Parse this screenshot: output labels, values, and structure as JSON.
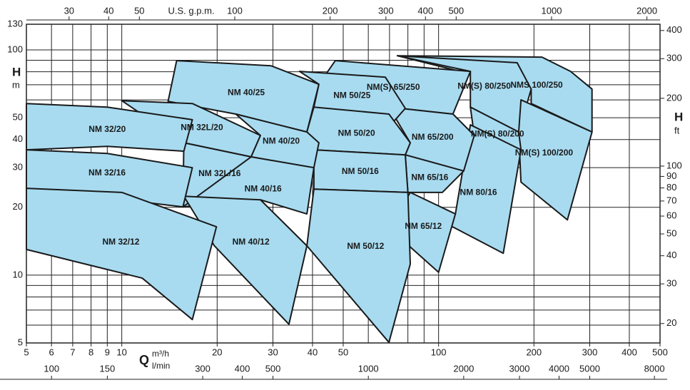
{
  "chart_data": {
    "type": "pump-ranges",
    "y_label": "H",
    "y_unit": "m",
    "y2_label": "H",
    "y2_unit": "ft",
    "x_label": "Q",
    "x_unit": "m³/h",
    "x3_unit": "l/min",
    "x2_label": "U.S. g.p.m.",
    "log_x": true,
    "log_y": true,
    "grid": true,
    "xlim": [
      5,
      500
    ],
    "xticks": [
      5,
      6,
      7,
      8,
      9,
      10,
      20,
      30,
      40,
      50,
      100,
      200,
      300,
      400,
      500
    ],
    "xminor": [
      60,
      70,
      80,
      90
    ],
    "ylim": [
      5,
      130
    ],
    "yticks": [
      5,
      10,
      20,
      30,
      40,
      50,
      100,
      130
    ],
    "yminor": [
      6,
      7,
      8,
      9,
      60,
      70,
      80,
      90
    ],
    "x2lim": [
      22,
      2200
    ],
    "x2ticks": [
      30,
      40,
      50,
      100,
      200,
      300,
      400,
      500,
      1000,
      2000
    ],
    "x3lim": [
      83.3,
      8333
    ],
    "x3ticks": [
      100,
      150,
      300,
      400,
      500,
      1000,
      2000,
      3000,
      4000,
      5000,
      8000
    ],
    "y2lim": [
      16.4,
      426.5
    ],
    "y2ticks": [
      20,
      30,
      40,
      50,
      60,
      70,
      80,
      90,
      100,
      200,
      300,
      400
    ],
    "fill": "#a8dbf0",
    "stroke": "#1a1a1a",
    "regions": [
      {
        "label": "NMS 100/250",
        "q": [
          74.1,
          212,
          261,
          305,
          305,
          196,
          196
        ],
        "h": [
          94.2,
          92.9,
          80.3,
          67,
          43.2,
          57.8,
          67
        ]
      },
      {
        "label": "NM(S) 80/250",
        "q": [
          74.1,
          177,
          196,
          179,
          126,
          126
        ],
        "h": [
          94.2,
          87.7,
          67,
          43.2,
          55.7,
          80.3
        ]
      },
      {
        "label": "NM(S) 100/200",
        "q": [
          182,
          305,
          255,
          182,
          179
        ],
        "h": [
          60,
          43.2,
          17.6,
          25.9,
          43.2
        ]
      },
      {
        "label": "NM(S) 80/200",
        "q": [
          126,
          179,
          182,
          160,
          129.6
        ],
        "h": [
          55.7,
          43.2,
          36,
          37.3,
          41.7
        ]
      },
      {
        "label": "NM 80/16",
        "q": [
          126,
          182,
          160,
          102.8,
          113
        ],
        "h": [
          46.5,
          36,
          12.5,
          17.3,
          18.7
        ]
      },
      {
        "label": "NM(S) 65/250",
        "q": [
          47.2,
          126,
          111,
          69.7,
          41.9
        ],
        "h": [
          89.6,
          80.3,
          51.9,
          55.7,
          70.4
        ]
      },
      {
        "label": "NM 65/200",
        "q": [
          69.7,
          111,
          129.6,
          120,
          78.5,
          81.4
        ],
        "h": [
          55.7,
          51.9,
          41.7,
          29,
          34.2,
          38.7
        ]
      },
      {
        "label": "NM 65/16",
        "q": [
          78.5,
          120,
          102.8,
          80
        ],
        "h": [
          34.2,
          29,
          23.3,
          23.3
        ]
      },
      {
        "label": "NM 65/12",
        "q": [
          81.4,
          113,
          100,
          69.7
        ],
        "h": [
          23.3,
          18.7,
          10.3,
          16.2
        ]
      },
      {
        "label": "NM 40/25",
        "q": [
          14.9,
          29.6,
          41.9,
          38.4,
          22.9,
          14
        ],
        "h": [
          89.6,
          85,
          70.4,
          43.2,
          51.9,
          59.1
        ]
      },
      {
        "label": "NM 50/25",
        "q": [
          36.4,
          67.9,
          78.5,
          69.7,
          40.4,
          41.9
        ],
        "h": [
          80.3,
          75.7,
          55,
          45.5,
          55.7,
          70.4
        ]
      },
      {
        "label": "NM 50/20",
        "q": [
          40.4,
          69.7,
          81.4,
          78.5,
          40.4,
          38.4
        ],
        "h": [
          55.7,
          51.9,
          38.7,
          34.2,
          36,
          43.2
        ]
      },
      {
        "label": "NM 50/16",
        "q": [
          40.4,
          78.5,
          80,
          40.4
        ],
        "h": [
          36,
          34.2,
          23.3,
          24.1
        ]
      },
      {
        "label": "NM 50/12",
        "q": [
          40.4,
          80,
          81.4,
          69.7,
          38.4
        ],
        "h": [
          24.1,
          23.3,
          11.2,
          5.03,
          13.5
        ]
      },
      {
        "label": "NM 32L/20",
        "q": [
          10,
          16.7,
          27.4,
          25.6,
          15.7
        ],
        "h": [
          59.5,
          57.8,
          41.7,
          33.5,
          38.7
        ]
      },
      {
        "label": "NM 40/20",
        "q": [
          22.9,
          38.4,
          41.9,
          40.4,
          25.6,
          27.4
        ],
        "h": [
          51.9,
          43.2,
          38.7,
          30,
          33.5,
          41.7
        ]
      },
      {
        "label": "NM 32L/16",
        "q": [
          15.7,
          25.6,
          27.4,
          15.6
        ],
        "h": [
          38.7,
          33.5,
          24.1,
          20.1
        ]
      },
      {
        "label": "NM 40/16",
        "q": [
          25.6,
          40.4,
          38.4,
          27.4,
          15.6
        ],
        "h": [
          33.5,
          30,
          18.7,
          21.6,
          20.1
        ]
      },
      {
        "label": "NM 40/12",
        "q": [
          15.7,
          27.4,
          38.4,
          33.7,
          19.6
        ],
        "h": [
          22.4,
          21.6,
          13.5,
          6.05,
          13.5
        ]
      },
      {
        "label": "NM 32/20",
        "q": [
          5,
          9,
          16.7,
          15.7,
          9,
          5
        ],
        "h": [
          57.8,
          55.7,
          49,
          35.5,
          37.3,
          36
        ]
      },
      {
        "label": "NM 32/16",
        "q": [
          5,
          9,
          16.7,
          15.6,
          5
        ],
        "h": [
          36,
          34.7,
          30,
          20.1,
          24.3
        ]
      },
      {
        "label": "NM 32/12",
        "q": [
          5,
          10,
          19.9,
          16.7,
          11.6,
          5
        ],
        "h": [
          24.3,
          23.3,
          16.4,
          6.35,
          9.7,
          13
        ]
      }
    ]
  }
}
